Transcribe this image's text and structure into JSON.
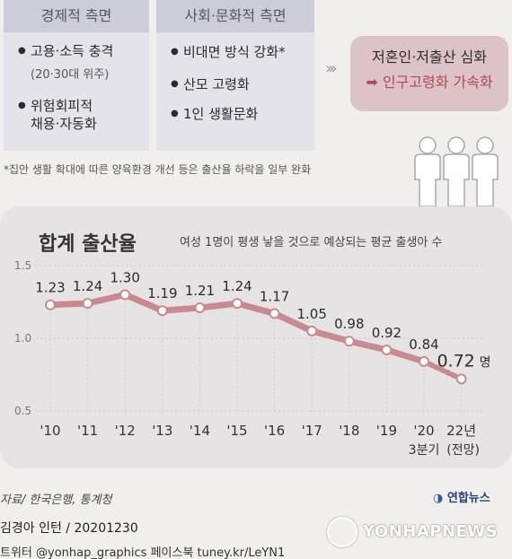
{
  "panels": {
    "economic": {
      "title": "경제적 측면",
      "items": [
        "고용·소득 충격",
        "위험회피적 채용·자동화"
      ],
      "item1_sub": "(20·30대 위주)",
      "item2_line1": "위험회피적",
      "item2_line2": "채용·자동화"
    },
    "social": {
      "title": "사회·문화적 측면",
      "items": [
        "비대면 방식 강화*",
        "산모 고령화",
        "1인 생활문화"
      ]
    },
    "result": {
      "line1": "저혼인·저출산 심화",
      "line2": "➡ 인구고령화 가속화"
    }
  },
  "note": "*집안 생활 확대에 따른 양육환경 개선 등은 출산율 하락을 일부 완화",
  "chart_data": {
    "type": "line",
    "title": "합계 출산율",
    "subtitle": "여성 1명이 평생 낳을 것으로 예상되는 평균 출생아 수",
    "categories": [
      "'10",
      "'11",
      "'12",
      "'13",
      "'14",
      "'15",
      "'16",
      "'17",
      "'18",
      "'19",
      "'20",
      "22년"
    ],
    "category_sublabels": [
      "",
      "",
      "",
      "",
      "",
      "",
      "",
      "",
      "",
      "",
      "3분기",
      "(전망)"
    ],
    "values": [
      1.23,
      1.24,
      1.3,
      1.19,
      1.21,
      1.24,
      1.17,
      1.05,
      0.98,
      0.92,
      0.84,
      0.72
    ],
    "value_labels": [
      "1.23",
      "1.24",
      "1.30",
      "1.19",
      "1.21",
      "1.24",
      "1.17",
      "1.05",
      "0.98",
      "0.92",
      "0.84",
      "0.72"
    ],
    "last_value_unit": "명",
    "projected_index": 11,
    "yticks": [
      "1.5",
      "1.0",
      "0.5"
    ],
    "ylim": [
      0.5,
      1.5
    ],
    "grid": true,
    "line_color": "#c98a8f",
    "marker_fill": "#ffffff"
  },
  "footer": {
    "source": "자료/ 한국은행, 통계청",
    "logo": "연합뉴스",
    "credit": "김경아 인턴 / 20201230",
    "twitter": "트위터 @yonhap_graphics  페이스북 tuney.kr/LeYN1",
    "watermark": "YONHAPNEWS"
  }
}
